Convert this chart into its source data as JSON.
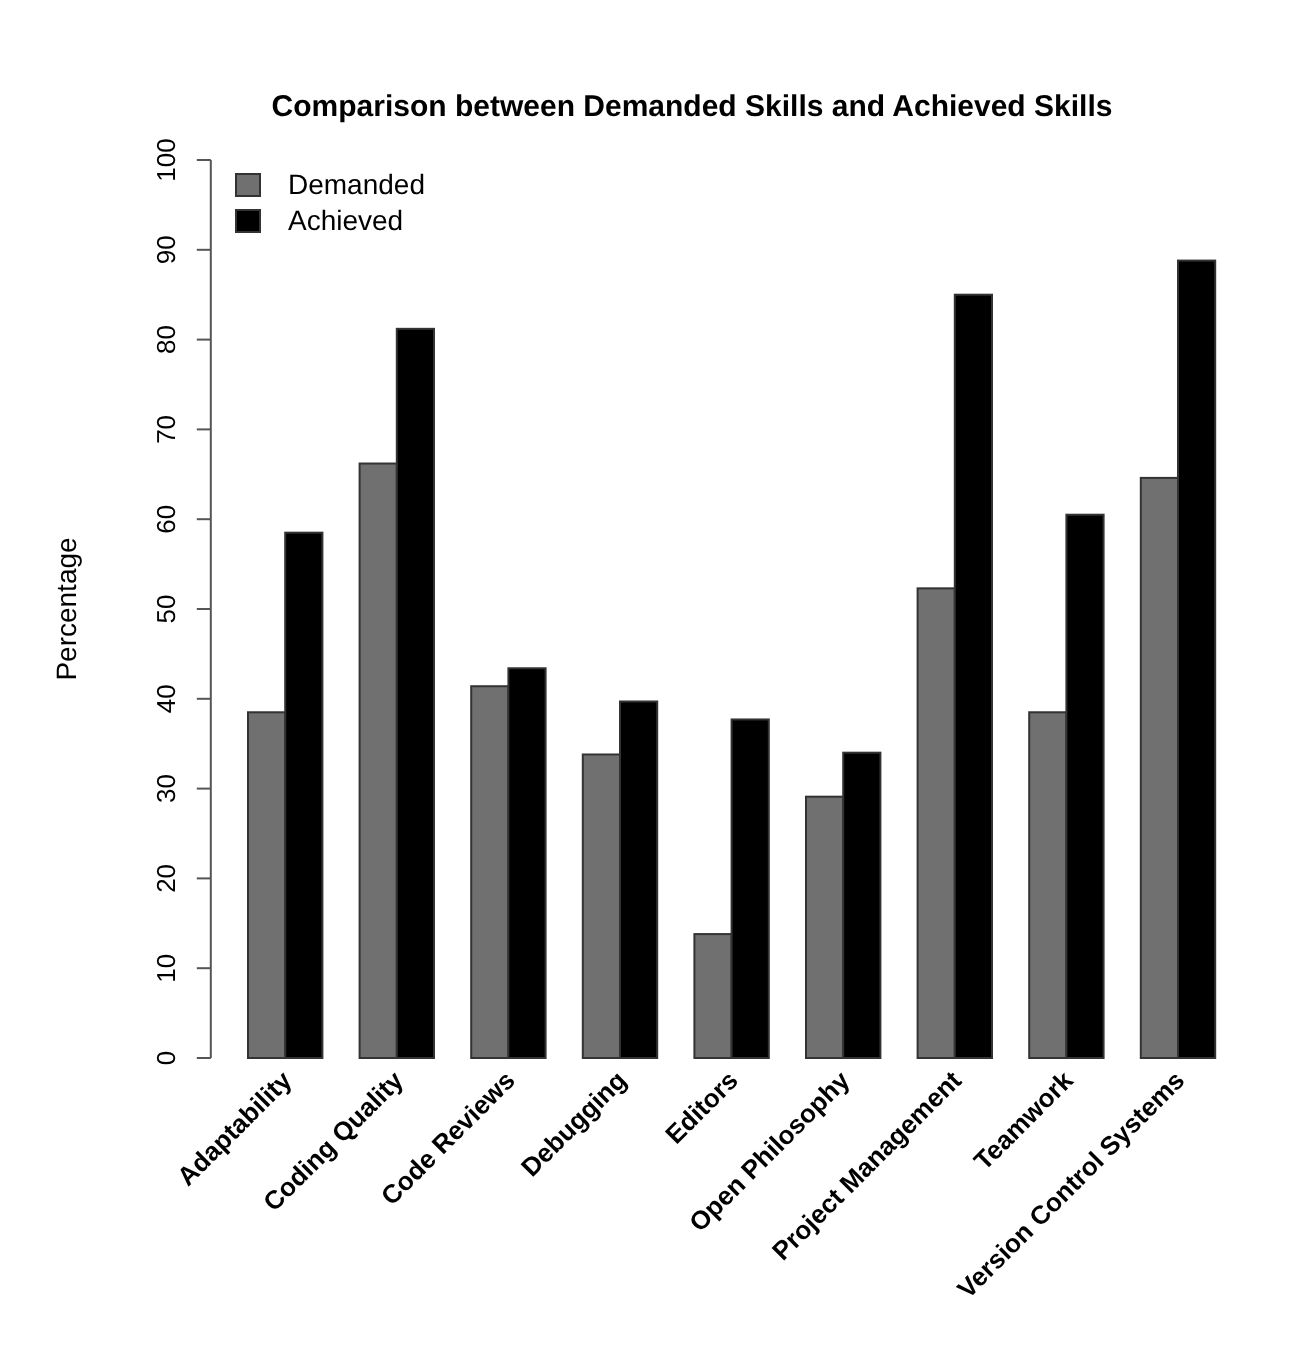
{
  "chart_data": {
    "type": "bar",
    "title": "Comparison between Demanded Skills and Achieved Skills",
    "ylabel": "Percentage",
    "categories": [
      "Adaptability",
      "Coding Quality",
      "Code Reviews",
      "Debugging",
      "Editors",
      "Open Philosophy",
      "Project Management",
      "Teamwork",
      "Version Control Systems"
    ],
    "series": [
      {
        "name": "Demanded",
        "color": "#707070",
        "values": [
          38.5,
          66.2,
          41.4,
          33.8,
          13.8,
          29.1,
          52.3,
          38.5,
          64.6
        ]
      },
      {
        "name": "Achieved",
        "color": "#000000",
        "values": [
          58.5,
          81.2,
          43.4,
          39.7,
          37.7,
          34.0,
          85.0,
          60.5,
          88.8
        ]
      }
    ],
    "ylim": [
      0,
      100
    ],
    "yticks": [
      0,
      10,
      20,
      30,
      40,
      50,
      60,
      70,
      80,
      90,
      100
    ],
    "legend": "top left"
  }
}
